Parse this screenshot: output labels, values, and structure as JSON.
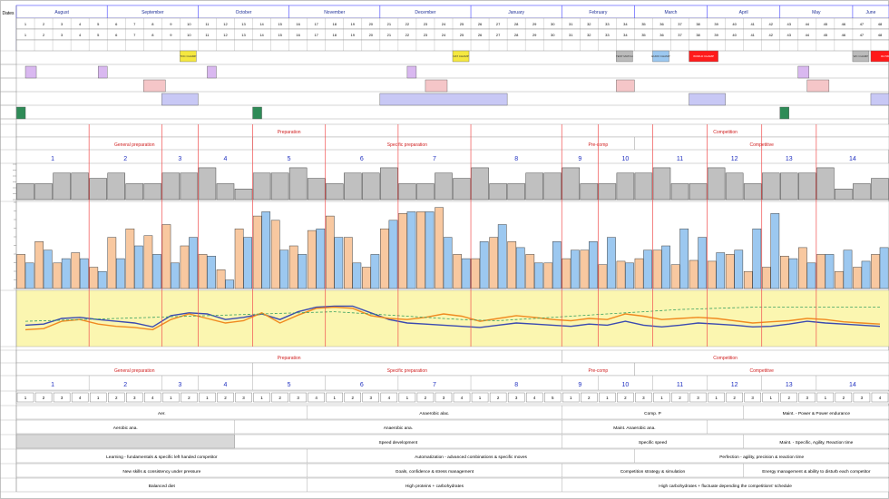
{
  "title_corner": "Dates",
  "months": [
    "August",
    "September",
    "October",
    "November",
    "December",
    "January",
    "February",
    "March",
    "April",
    "May",
    "June"
  ],
  "week_numbers_row": [
    "1",
    "2",
    "3",
    "4",
    "5",
    "6",
    "7",
    "8",
    "9",
    "10",
    "11",
    "12",
    "13",
    "14",
    "15",
    "16",
    "17",
    "18",
    "19",
    "20",
    "21",
    "22",
    "23",
    "24",
    "25",
    "26",
    "27",
    "28",
    "29",
    "30",
    "31",
    "32",
    "33",
    "34",
    "35",
    "36",
    "37",
    "38",
    "39",
    "40",
    "41",
    "42",
    "43",
    "44",
    "45",
    "46",
    "47",
    "48"
  ],
  "week_numbers_display": [
    "1",
    "2",
    "3",
    "4",
    "5",
    "6",
    "7",
    "8",
    "9",
    "10",
    "11",
    "12",
    "13",
    "14",
    "15",
    "16",
    "17",
    "18",
    "19",
    "20",
    "21",
    "22",
    "23",
    "24",
    "25",
    "26",
    "27",
    "28",
    "29",
    "30",
    "31",
    "32",
    "33",
    "34",
    "35",
    "36",
    "37",
    "38",
    "39",
    "40",
    "41",
    "42",
    "43",
    "44",
    "45",
    "46",
    "47",
    "48"
  ],
  "event_labels": [
    "TOC CHAMP",
    "NAT CHAMP",
    "TEST MATCH",
    "EURO CHAMP",
    "WORLD CHAMP",
    "WC CHAMP",
    "OLYMP"
  ],
  "periods": {
    "prep": "Preparation",
    "comp": "Competition"
  },
  "subperiods": {
    "general": "General preparation",
    "specific": "Specific preparation",
    "precomp": "Pre-comp",
    "competitive": "Competitive"
  },
  "mesocycles": [
    "1",
    "2",
    "3",
    "4",
    "5",
    "6",
    "7",
    "8",
    "9",
    "10",
    "11",
    "12",
    "13",
    "14"
  ],
  "energy_systems": [
    "Aer.",
    "Anaerobic alac.",
    "Comp. P",
    "Maint. - Power & Power endurance"
  ],
  "energy_systems2": [
    "Aerobic ana.",
    "Anaerobic ana.",
    "Maint. Anaerobic ana."
  ],
  "speed_row": [
    "Speed development",
    "Specific speed",
    "Maint. - Specific, Agility, Reaction time"
  ],
  "technical_row": [
    "Learning - fundamentals & specific left handed competitor",
    "Automatization - advanced combinations & specific moves",
    "Perfection - agility, precision & reaction time"
  ],
  "tactical_row": [
    "New skills & consistency under pressure",
    "Goals, confidence & stress management",
    "Competition strategy & simulation",
    "Energy management & ability to disturb each competitor"
  ],
  "psych_row": [
    "Balanced diet",
    "High proteins + carbohydrates",
    "High carbohydrates + fluctuate depending the competitions' schedule"
  ],
  "colors": {
    "orange": "#f8c8a0",
    "blue": "#9cc8f0",
    "gray": "#c0c0c0",
    "yellow": "#fbf6b0",
    "purple": "#d9b8f0",
    "pink": "#f5c6c8",
    "lavender": "#c8c8f5",
    "green": "#2e8b57",
    "red": "#e03030",
    "accent": "#1a3cff"
  },
  "chart_data": [
    {
      "type": "bar",
      "title": "",
      "series": [
        {
          "values": [
            3,
            3,
            5,
            5,
            4,
            5,
            3,
            3,
            5,
            5,
            6,
            3,
            2,
            5,
            5,
            6,
            4,
            3,
            5,
            5,
            6,
            3,
            3,
            5,
            4,
            6,
            3,
            3,
            5,
            5,
            6,
            3,
            3,
            5,
            5,
            6,
            3,
            3,
            6,
            5,
            3,
            5,
            5,
            5,
            6,
            2,
            3,
            4
          ]
        }
      ]
    },
    {
      "type": "bar",
      "title": "",
      "series": [
        {
          "values": [
            40,
            55,
            30,
            42,
            25,
            60,
            70,
            62,
            75,
            50,
            40,
            22,
            70,
            85,
            80,
            50,
            68,
            85,
            60,
            25,
            70,
            88,
            90,
            95,
            40,
            35,
            60,
            55,
            40,
            30,
            35,
            45,
            28,
            32,
            35,
            45,
            28,
            33,
            32,
            40,
            20,
            25,
            38,
            48,
            40,
            20,
            25,
            40
          ]
        },
        {
          "values": [
            30,
            45,
            35,
            35,
            20,
            35,
            50,
            40,
            30,
            60,
            38,
            10,
            60,
            90,
            45,
            40,
            70,
            60,
            30,
            40,
            80,
            90,
            90,
            60,
            35,
            55,
            75,
            48,
            30,
            55,
            45,
            55,
            60,
            30,
            45,
            50,
            70,
            60,
            42,
            45,
            70,
            88,
            35,
            30,
            40,
            45,
            32,
            48
          ]
        }
      ]
    },
    {
      "type": "line",
      "title": "",
      "series": [
        {
          "values": [
            38,
            40,
            50,
            52,
            48,
            45,
            42,
            35,
            55,
            60,
            58,
            48,
            52,
            58,
            48,
            62,
            70,
            72,
            72,
            60,
            48,
            42,
            40,
            38,
            36,
            34,
            38,
            42,
            40,
            38,
            36,
            40,
            38,
            45,
            38,
            35,
            38,
            42,
            40,
            38,
            35,
            36,
            40,
            45,
            42,
            40,
            38,
            36
          ]
        },
        {
          "values": [
            30,
            32,
            45,
            48,
            40,
            36,
            34,
            30,
            48,
            58,
            50,
            42,
            46,
            60,
            42,
            56,
            68,
            70,
            68,
            55,
            50,
            48,
            52,
            58,
            54,
            45,
            50,
            55,
            52,
            48,
            46,
            50,
            48,
            58,
            54,
            48,
            50,
            52,
            50,
            46,
            42,
            44,
            46,
            50,
            48,
            44,
            42,
            40
          ]
        },
        {
          "values": [
            45,
            46,
            47,
            48,
            49,
            50,
            51,
            52,
            53,
            54,
            55,
            56,
            57,
            58,
            59,
            60,
            61,
            62,
            60,
            58,
            56,
            54,
            52,
            50,
            48,
            47,
            46,
            48,
            50,
            52,
            54,
            56,
            58,
            60,
            62,
            64,
            66,
            67,
            68,
            69,
            70,
            70,
            70,
            70,
            70,
            70,
            70,
            70
          ]
        }
      ]
    }
  ]
}
